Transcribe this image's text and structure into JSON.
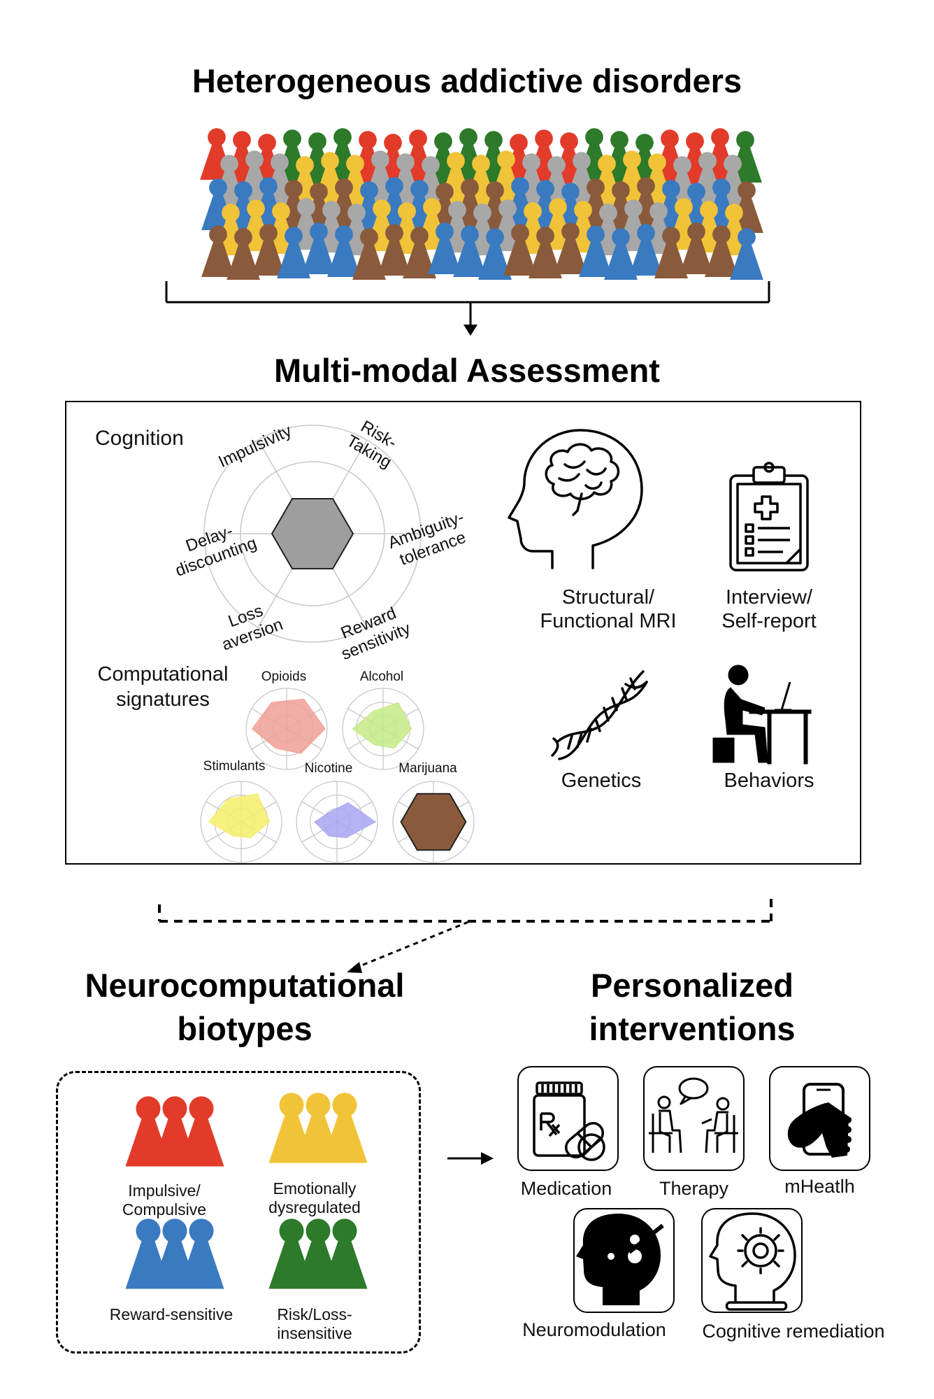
{
  "titles": {
    "top": "Heterogeneous addictive disorders",
    "assessment": "Multi-modal Assessment",
    "biotypes": "Neurocomputational biotypes",
    "interventions": "Personalized interventions"
  },
  "cognition": {
    "heading": "Cognition",
    "axes": [
      "Impulsivity",
      "Risk-Taking",
      "Ambiguity-tolerance",
      "Reward sensitivity",
      "Loss aversion",
      "Delay-discounting"
    ]
  },
  "computational": {
    "heading": "Computational signatures",
    "substances": [
      {
        "name": "Opioids",
        "color": "#f0a097"
      },
      {
        "name": "Alcohol",
        "color": "#c5ea85"
      },
      {
        "name": "Stimulants",
        "color": "#f6ee6a"
      },
      {
        "name": "Nicotine",
        "color": "#a8a6f2"
      },
      {
        "name": "Marijuana",
        "color": "#8a5a3c"
      }
    ]
  },
  "modalities": [
    {
      "line1": "Structural/",
      "line2": "Functional MRI",
      "icon": "brain-head-icon"
    },
    {
      "line1": "Interview/",
      "line2": "Self-report",
      "icon": "clipboard-icon"
    },
    {
      "line1": "Genetics",
      "line2": "",
      "icon": "dna-icon"
    },
    {
      "line1": "Behaviors",
      "line2": "",
      "icon": "person-at-desk-icon"
    }
  ],
  "biotypes": [
    {
      "line1": "Impulsive/",
      "line2": "Compulsive",
      "color": "#e23b2a"
    },
    {
      "line1": "Emotionally",
      "line2": "dysregulated",
      "color": "#f1c338"
    },
    {
      "line1": "Reward-sensitive",
      "line2": "",
      "color": "#3a7ac0"
    },
    {
      "line1": "Risk/Loss-",
      "line2": "insensitive",
      "color": "#2c7a2a"
    }
  ],
  "interventions": [
    {
      "label": "Medication",
      "icon": "pill-bottle-icon"
    },
    {
      "label": "Therapy",
      "icon": "therapy-icon"
    },
    {
      "label": "mHeatlh",
      "icon": "phone-in-hand-icon"
    },
    {
      "label": "Neuromodulation",
      "icon": "head-magnet-icon"
    },
    {
      "label": "Cognitive remediation",
      "icon": "head-gear-icon"
    }
  ],
  "colors": {
    "red": "#e23b2a",
    "yellow": "#f1c338",
    "blue": "#3a7ac0",
    "green": "#2c7a2a",
    "gray": "#a8a8a8",
    "brown": "#8a5a3c"
  }
}
